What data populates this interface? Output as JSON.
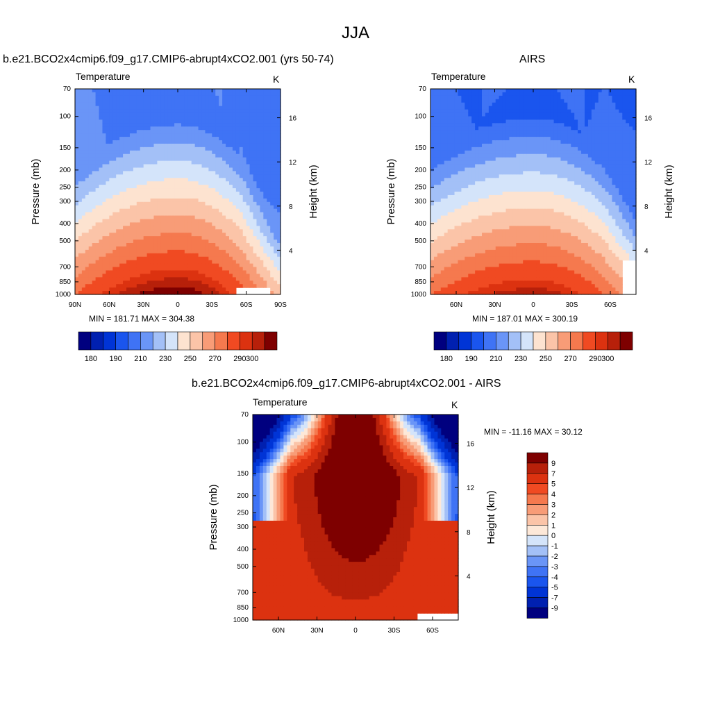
{
  "page": {
    "title": "JJA"
  },
  "colors": {
    "abs_palette": [
      "#00007f",
      "#0020b0",
      "#0034d6",
      "#1a55ee",
      "#3f73f5",
      "#6a95f7",
      "#a3c0f7",
      "#d4e4fa",
      "#fde3d0",
      "#fbc4a8",
      "#f89c77",
      "#f5794e",
      "#f04a22",
      "#dc3210",
      "#b7200a",
      "#7e0000"
    ],
    "diff_palette": [
      "#00007f",
      "#0020b0",
      "#0034d6",
      "#1a55ee",
      "#3f73f5",
      "#6a95f7",
      "#a3c0f7",
      "#d4e4fa",
      "#fde8d8",
      "#fbc4a8",
      "#f89c77",
      "#f5794e",
      "#f04a22",
      "#dc3210",
      "#b7200a",
      "#7e0000"
    ]
  },
  "chart_data": [
    {
      "type": "heatmap",
      "title": "b.e21.BCO2x4cmip6.f09_g17.CMIP6-abrupt4xCO2.001 (yrs 50-74)",
      "left_label": "Temperature",
      "right_label": "K",
      "ylabel": "Pressure (mb)",
      "y2label": "Height (km)",
      "pressure_ticks": [
        "70",
        "100",
        "150",
        "200",
        "250",
        "300",
        "400",
        "500",
        "700",
        "850",
        "1000"
      ],
      "height_ticks": [
        "4",
        "8",
        "12",
        "16"
      ],
      "lat_ticks": [
        "90N",
        "60N",
        "30N",
        "0",
        "30S",
        "60S",
        "90S"
      ],
      "stats": "MIN = 181.71   MAX = 304.38",
      "min": 181.71,
      "max": 304.38,
      "colorbar_labels": [
        "180",
        "190",
        "210",
        "230",
        "250",
        "270",
        "290",
        "300"
      ],
      "levels": [
        180,
        185,
        190,
        200,
        210,
        220,
        230,
        240,
        250,
        260,
        270,
        280,
        290,
        295,
        300
      ],
      "grid": false
    },
    {
      "type": "heatmap",
      "title": "AIRS",
      "left_label": "Temperature",
      "right_label": "K",
      "ylabel": "Pressure (mb)",
      "y2label": "Height (km)",
      "pressure_ticks": [
        "70",
        "100",
        "150",
        "200",
        "250",
        "300",
        "400",
        "500",
        "700",
        "850",
        "1000"
      ],
      "height_ticks": [
        "4",
        "8",
        "12",
        "16"
      ],
      "lat_ticks": [
        "60N",
        "30N",
        "0",
        "30S",
        "60S"
      ],
      "stats": "MIN = 187.01   MAX = 300.19",
      "min": 187.01,
      "max": 300.19,
      "colorbar_labels": [
        "180",
        "190",
        "210",
        "230",
        "250",
        "270",
        "290",
        "300"
      ],
      "levels": [
        180,
        185,
        190,
        200,
        210,
        220,
        230,
        240,
        250,
        260,
        270,
        280,
        290,
        295,
        300
      ],
      "grid": false
    },
    {
      "type": "heatmap",
      "title": "b.e21.BCO2x4cmip6.f09_g17.CMIP6-abrupt4xCO2.001 - AIRS",
      "left_label": "Temperature",
      "right_label": "K",
      "ylabel": "Pressure (mb)",
      "y2label": "Height (km)",
      "pressure_ticks": [
        "70",
        "100",
        "150",
        "200",
        "250",
        "300",
        "400",
        "500",
        "700",
        "850",
        "1000"
      ],
      "height_ticks": [
        "4",
        "8",
        "12",
        "16"
      ],
      "lat_ticks": [
        "60N",
        "30N",
        "0",
        "30S",
        "60S"
      ],
      "stats": "MIN = -11.16   MAX =  30.12",
      "min": -11.16,
      "max": 30.12,
      "colorbar_labels": [
        "9",
        "7",
        "5",
        "4",
        "3",
        "2",
        "1",
        "0",
        "-1",
        "-2",
        "-3",
        "-4",
        "-5",
        "-7",
        "-9"
      ],
      "levels": [
        -9,
        -7,
        -5,
        -4,
        -3,
        -2,
        -1,
        0,
        1,
        2,
        3,
        4,
        5,
        7,
        9
      ],
      "grid": false
    }
  ]
}
